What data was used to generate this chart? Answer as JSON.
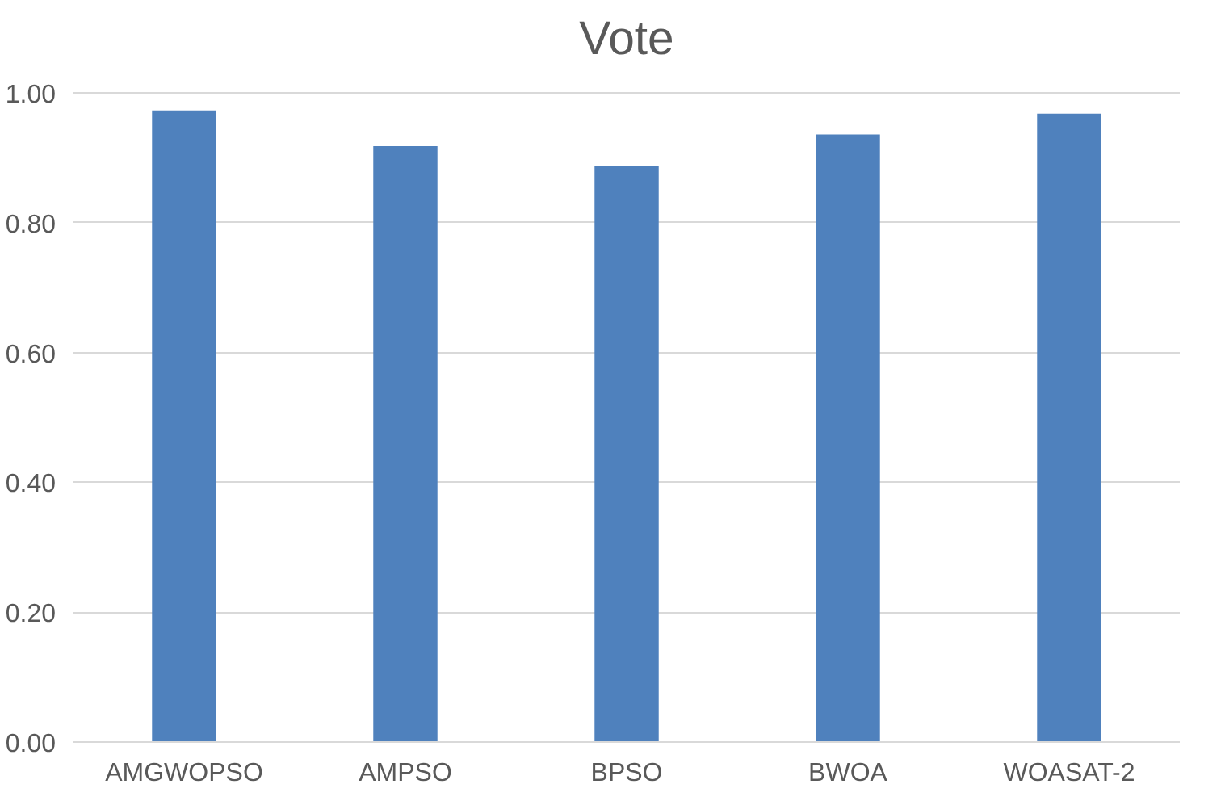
{
  "chart_data": {
    "type": "bar",
    "title": "Vote",
    "categories": [
      "AMGWOPSO",
      "AMPSO",
      "BPSO",
      "BWOA",
      "WOASAT-2"
    ],
    "values": [
      0.973,
      0.918,
      0.888,
      0.936,
      0.968
    ],
    "color": "#4f81bd",
    "ylim": [
      0,
      1.0
    ],
    "yticks": [
      {
        "value": 0,
        "label": "0.00"
      },
      {
        "value": 0.2,
        "label": "0.20"
      },
      {
        "value": 0.4,
        "label": "0.40"
      },
      {
        "value": 0.6,
        "label": "0.60"
      },
      {
        "value": 0.8,
        "label": "0.80"
      },
      {
        "value": 1.0,
        "label": "1.00"
      }
    ],
    "grid": "y"
  }
}
